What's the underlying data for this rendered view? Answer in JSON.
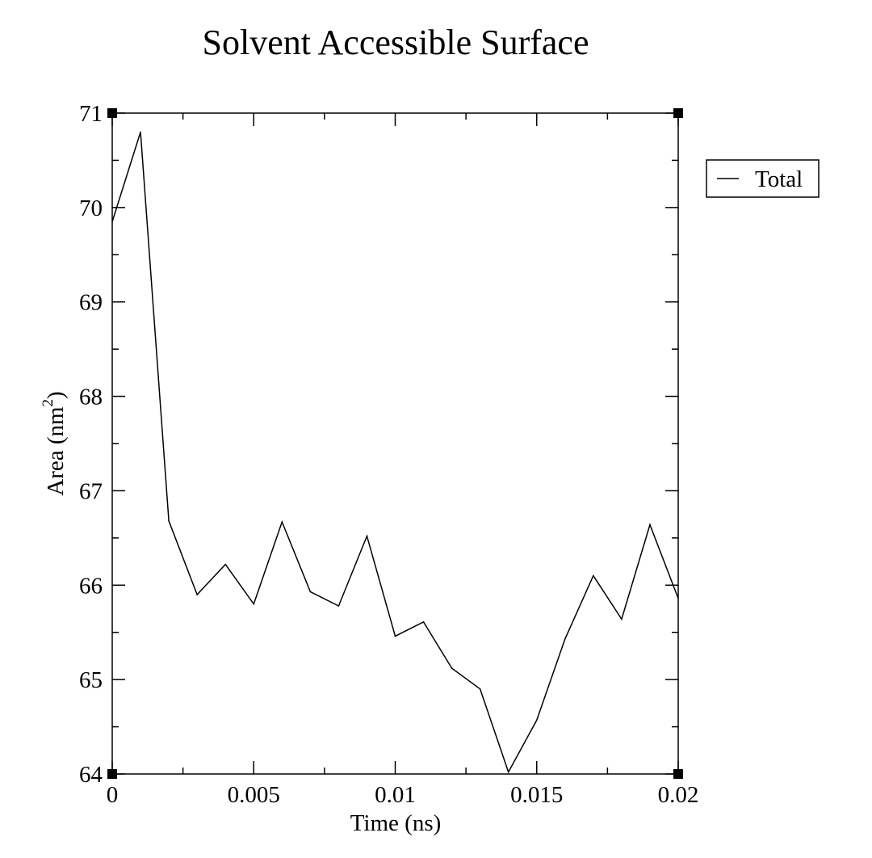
{
  "chart_data": {
    "type": "line",
    "title": "Solvent Accessible Surface",
    "xlabel": "Time (ns)",
    "ylabel": "Area (nm",
    "ylabel_superscript": "2",
    "ylabel_suffix": ")",
    "xlim": [
      0,
      0.02
    ],
    "ylim": [
      64,
      71
    ],
    "x_ticks": [
      0,
      0.005,
      0.01,
      0.015,
      0.02
    ],
    "x_tick_labels": [
      "0",
      "0.005",
      "0.01",
      "0.015",
      "0.02"
    ],
    "y_ticks": [
      64,
      65,
      66,
      67,
      68,
      69,
      70,
      71
    ],
    "y_tick_labels": [
      "64",
      "65",
      "66",
      "67",
      "68",
      "69",
      "70",
      "71"
    ],
    "grid": false,
    "legend_position": "right-outside-top",
    "line_color": "#000000",
    "series": [
      {
        "name": "Total",
        "x": [
          0,
          0.001,
          0.002,
          0.003,
          0.004,
          0.005,
          0.006,
          0.007,
          0.008,
          0.009,
          0.01,
          0.011,
          0.012,
          0.013,
          0.014,
          0.015,
          0.016,
          0.017,
          0.018,
          0.019,
          0.02
        ],
        "values": [
          69.85,
          70.8,
          66.68,
          65.9,
          66.22,
          65.8,
          66.67,
          65.93,
          65.78,
          66.52,
          65.46,
          65.61,
          65.12,
          64.9,
          64.02,
          64.57,
          65.43,
          66.1,
          65.64,
          66.64,
          65.86
        ]
      }
    ]
  }
}
